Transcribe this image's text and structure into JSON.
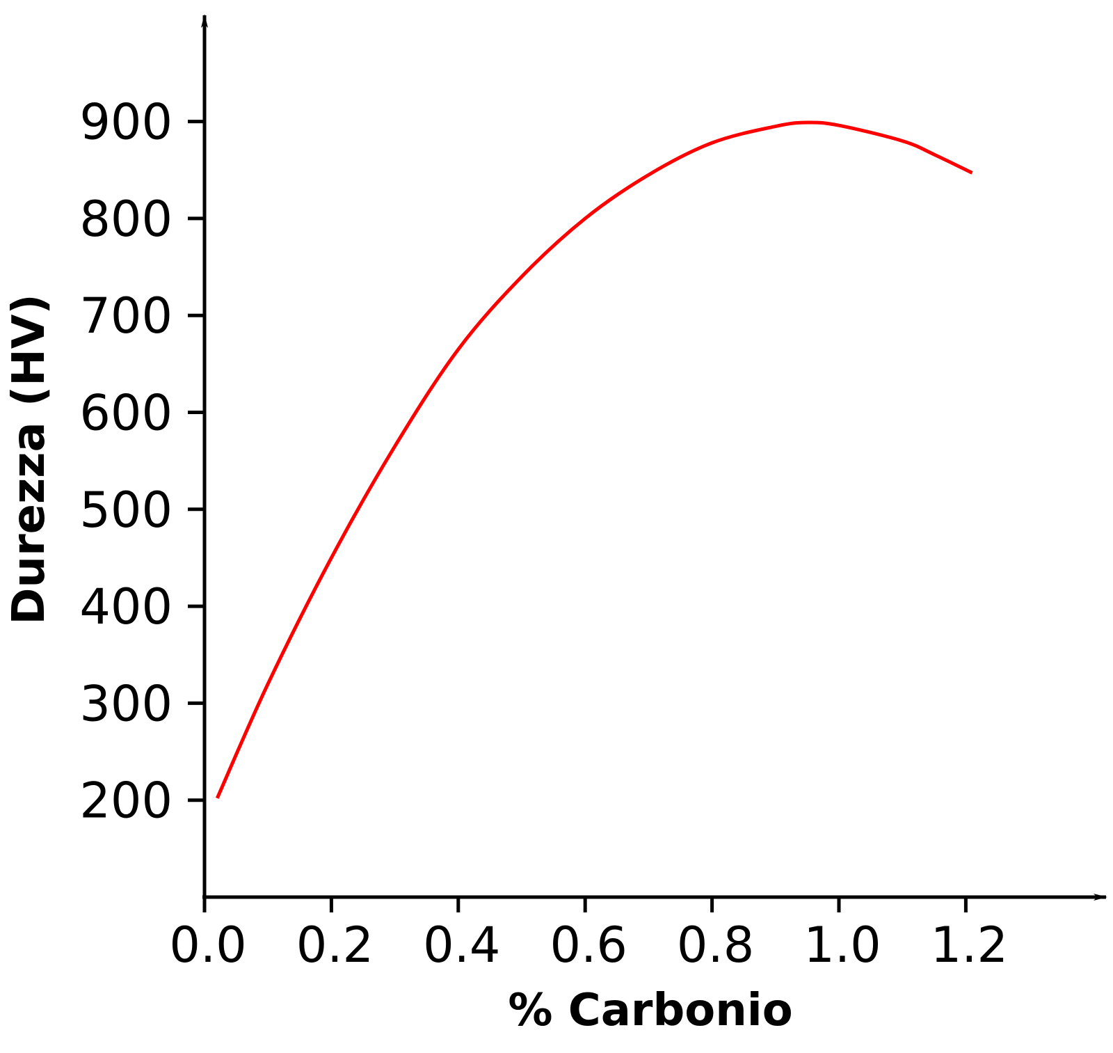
{
  "chart_data": {
    "type": "line",
    "xlabel": "% Carbonio",
    "ylabel": "Durezza (HV)",
    "x_ticks": [
      "0.0",
      "0.2",
      "0.4",
      "0.6",
      "0.8",
      "1.0",
      "1.2"
    ],
    "y_ticks": [
      "200",
      "300",
      "400",
      "500",
      "600",
      "700",
      "800",
      "900"
    ],
    "xlim": [
      0.0,
      1.4
    ],
    "ylim": [
      100,
      1000
    ],
    "grid": false,
    "series": [
      {
        "color": "#ff0000",
        "x": [
          0.02,
          0.1,
          0.2,
          0.3,
          0.4,
          0.5,
          0.6,
          0.7,
          0.8,
          0.9,
          0.95,
          1.0,
          1.1,
          1.15,
          1.21
        ],
        "y": [
          202,
          320,
          450,
          565,
          665,
          740,
          800,
          845,
          878,
          895,
          899,
          896,
          880,
          866,
          847
        ]
      }
    ],
    "axis_color": "#000000"
  }
}
